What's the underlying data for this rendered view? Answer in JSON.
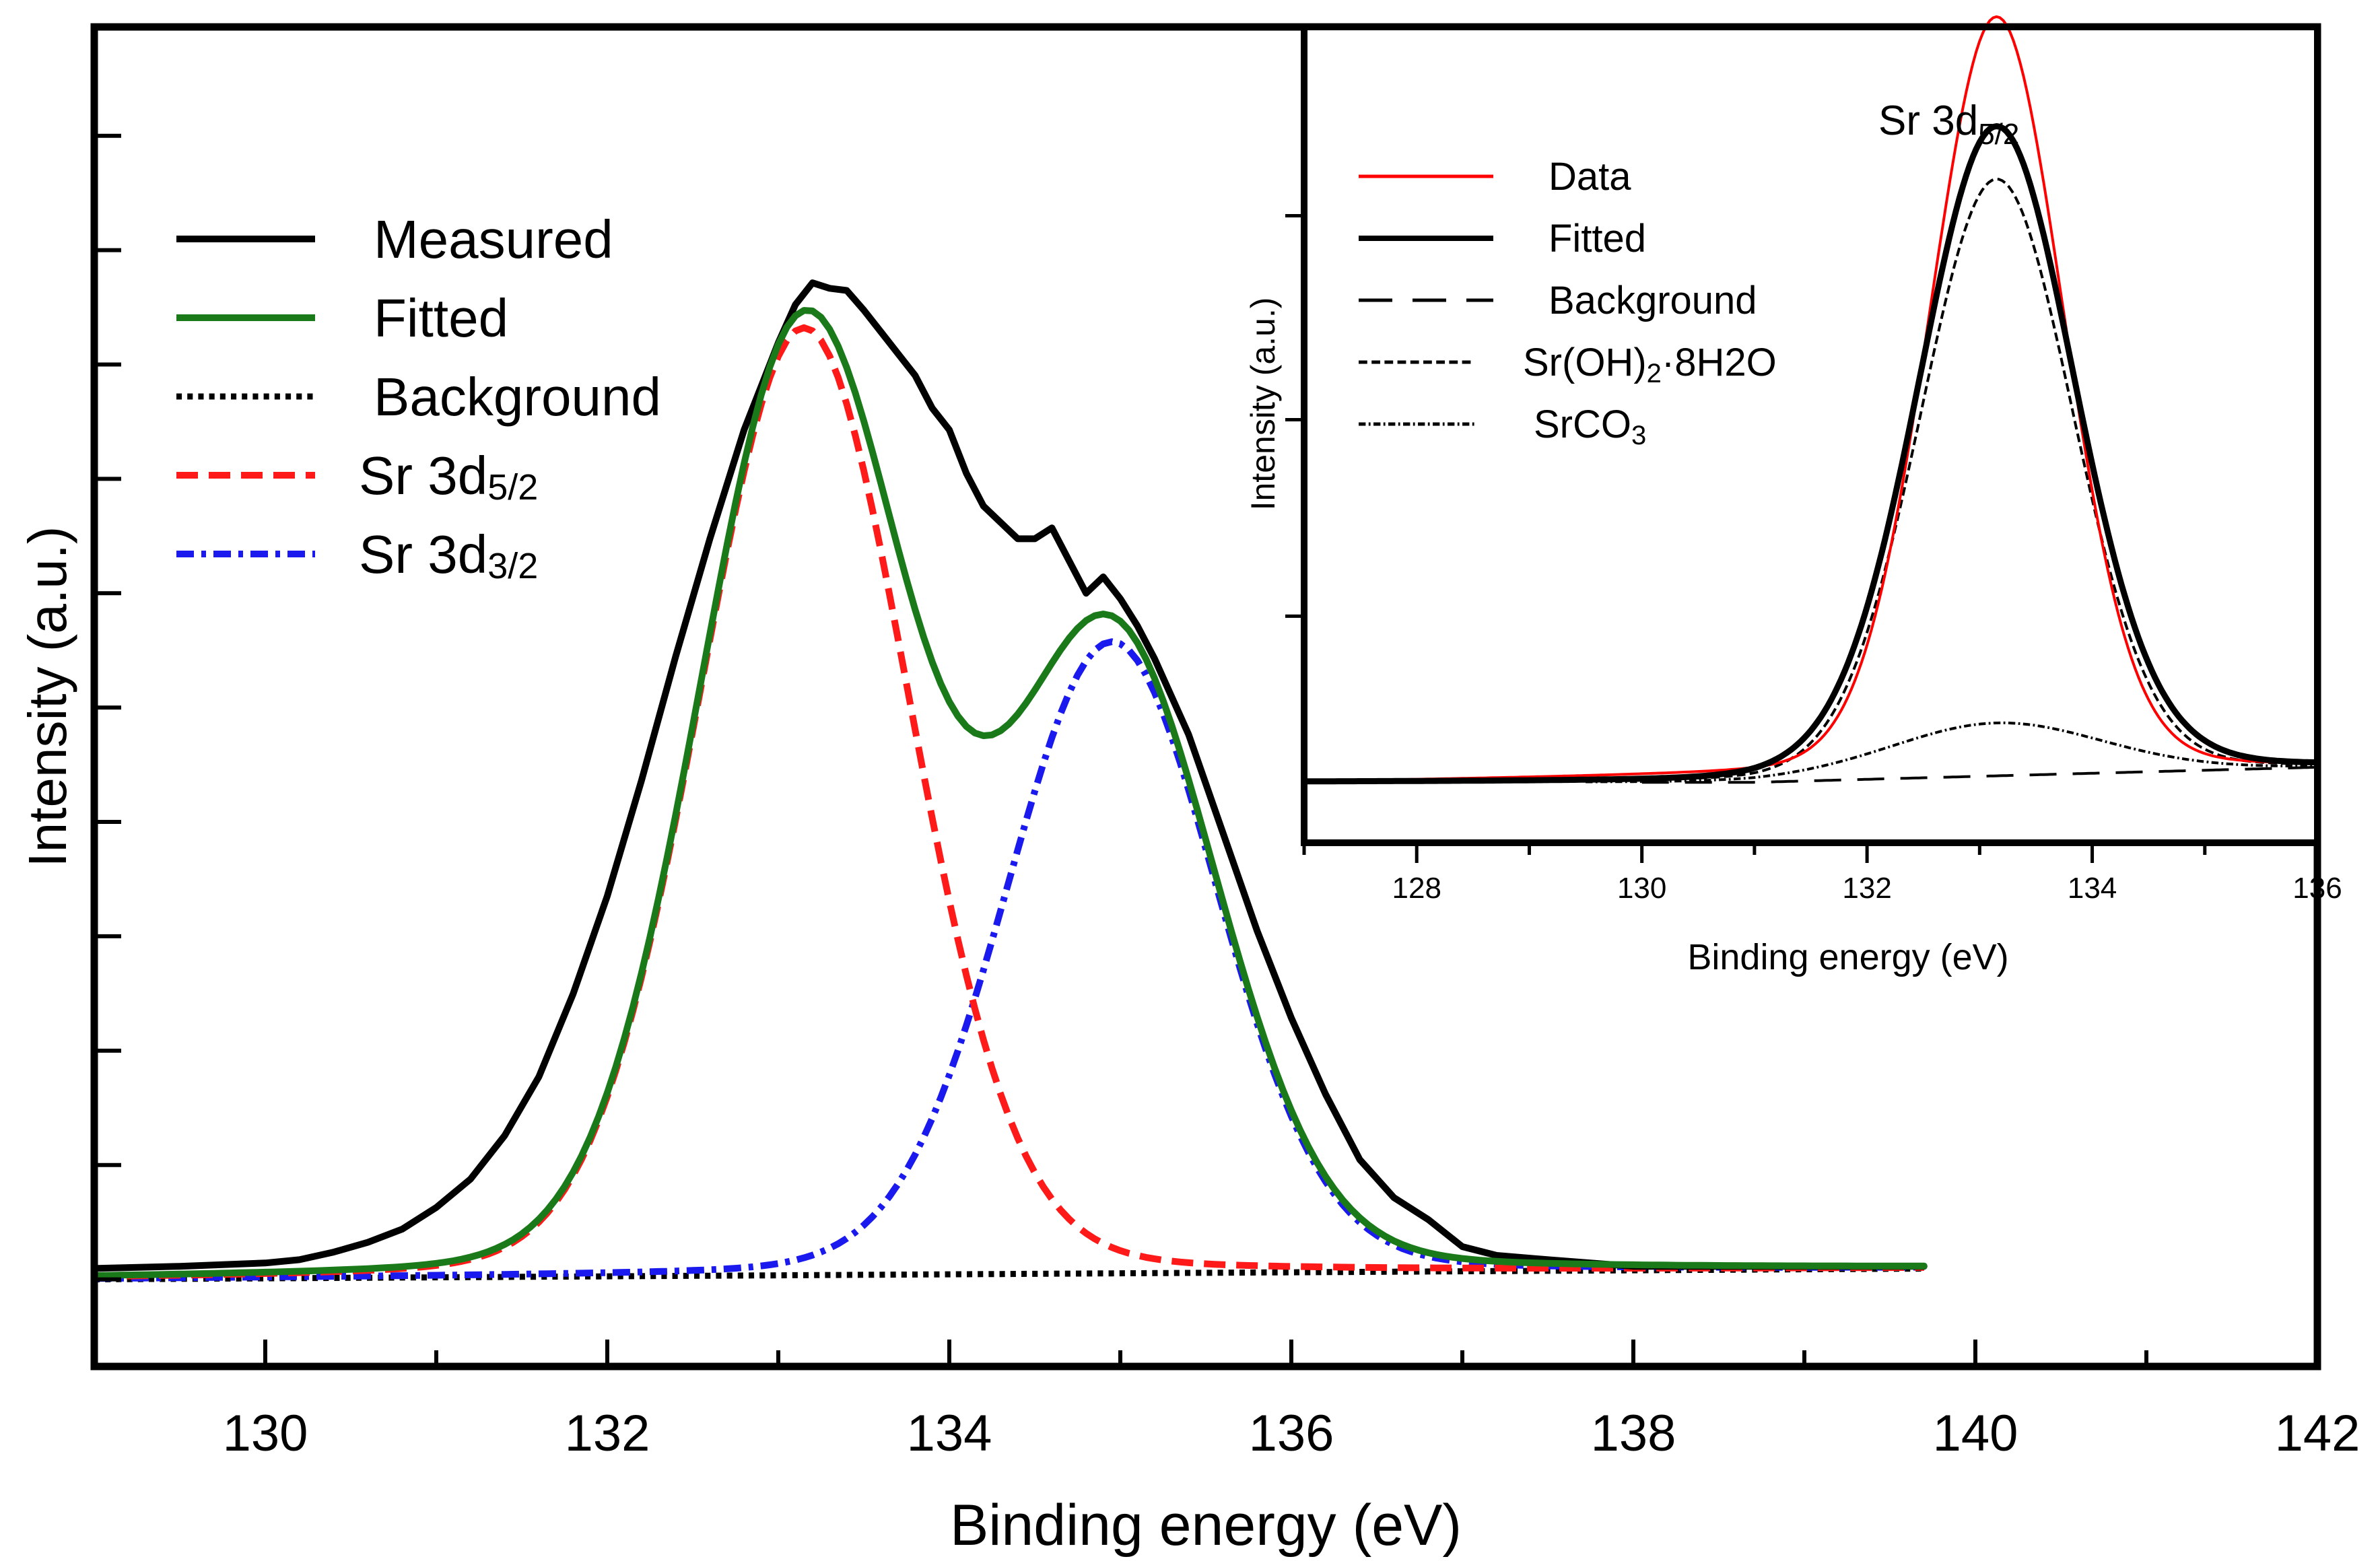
{
  "chart_data": [
    {
      "type": "line",
      "id": "main",
      "xlabel": "Binding energy (eV)",
      "ylabel": "Intensity (a.u.)",
      "xlim": [
        129.0,
        142.0
      ],
      "ylim": [
        -0.08,
        1.15
      ],
      "x_ticks": [
        130,
        132,
        134,
        136,
        138,
        140,
        142
      ],
      "x_tick_labels": [
        "130",
        "132",
        "134",
        "136",
        "138",
        "140",
        "142"
      ],
      "y_tick_values": [
        0.0,
        0.105,
        0.21,
        0.315,
        0.42,
        0.525,
        0.63,
        0.735,
        0.84,
        0.945,
        1.05
      ],
      "y_tick_labels_shown": false,
      "grid": false,
      "legend_position": "upper-left",
      "series": [
        {
          "name": "Measured",
          "label_main": "Measured",
          "label_sub": "",
          "style": "solid",
          "color": "#000000",
          "width": 10,
          "x": [
            129.0,
            129.5,
            130.0,
            130.2,
            130.4,
            130.6,
            130.8,
            131.0,
            131.2,
            131.4,
            131.6,
            131.8,
            132.0,
            132.2,
            132.4,
            132.6,
            132.8,
            133.0,
            133.1,
            133.2,
            133.3,
            133.4,
            133.5,
            133.6,
            133.7,
            133.8,
            133.9,
            134.0,
            134.1,
            134.2,
            134.3,
            134.4,
            134.5,
            134.6,
            134.7,
            134.8,
            134.9,
            135.0,
            135.1,
            135.2,
            135.4,
            135.6,
            135.8,
            136.0,
            136.2,
            136.4,
            136.6,
            136.8,
            137.0,
            137.2,
            137.5,
            138.0,
            138.5,
            139.0,
            139.5,
            139.7
          ],
          "y": [
            0.01,
            0.012,
            0.015,
            0.018,
            0.025,
            0.034,
            0.046,
            0.066,
            0.092,
            0.132,
            0.186,
            0.262,
            0.352,
            0.458,
            0.572,
            0.68,
            0.78,
            0.86,
            0.895,
            0.915,
            0.91,
            0.908,
            0.89,
            0.87,
            0.85,
            0.83,
            0.8,
            0.78,
            0.74,
            0.71,
            0.695,
            0.68,
            0.68,
            0.69,
            0.66,
            0.63,
            0.645,
            0.625,
            0.6,
            0.57,
            0.5,
            0.41,
            0.32,
            0.24,
            0.17,
            0.11,
            0.075,
            0.055,
            0.03,
            0.022,
            0.018,
            0.012,
            0.012,
            0.012,
            0.012,
            0.012
          ]
        },
        {
          "name": "Fitted",
          "label_main": "Fitted",
          "label_sub": "",
          "style": "solid",
          "color": "#1a7a1a",
          "width": 10,
          "components": [
            "Background",
            "Sr 3d5/2",
            "Sr 3d3/2"
          ]
        },
        {
          "name": "Background",
          "label_main": "Background",
          "label_sub": "",
          "style": "dotted",
          "color": "#000000",
          "width": 9,
          "model": {
            "type": "linear",
            "y_at_xmin": 0.0,
            "y_at_xmax": 0.012
          }
        },
        {
          "name": "Sr 3d5/2",
          "label_main": "Sr 3d",
          "label_sub": "5/2",
          "style": "dashed",
          "color": "#ff1a1a",
          "width": 10,
          "model": {
            "type": "voigt",
            "center": 133.15,
            "height": 0.87,
            "sigma": 0.62,
            "lorentz_fraction": 0.1
          }
        },
        {
          "name": "Sr 3d3/2",
          "label_main": "Sr 3d",
          "label_sub": "3/2",
          "style": "dashdot",
          "color": "#1a1aee",
          "width": 10,
          "model": {
            "type": "voigt",
            "center": 134.95,
            "height": 0.58,
            "sigma": 0.62,
            "lorentz_fraction": 0.1
          }
        }
      ]
    },
    {
      "type": "line",
      "id": "inset",
      "title_main": "Sr 3d",
      "title_sub": "5/2",
      "xlabel": "Binding energy (eV)",
      "ylabel": "Intensity (a.u.)",
      "xlim": [
        127.0,
        136.0
      ],
      "ylim": [
        -0.08,
        1.0
      ],
      "x_ticks": [
        128,
        130,
        132,
        134,
        136
      ],
      "x_tick_labels": [
        "128",
        "130",
        "132",
        "134",
        "136"
      ],
      "y_tick_values": [
        0.22,
        0.48,
        0.75,
        1.0
      ],
      "y_tick_labels_shown": false,
      "grid": false,
      "legend_position": "upper-left",
      "series": [
        {
          "name": "Data",
          "label_main": "Data",
          "label_sub": "",
          "label_after": "",
          "style": "solid",
          "color": "#ff0000",
          "width": 4,
          "model": {
            "type": "voigt",
            "center": 133.15,
            "height": 1.0,
            "sigma": 0.6,
            "lorentz_fraction": 0.1,
            "baseline": 0.0,
            "baseline_slope": 0.0022
          }
        },
        {
          "name": "Fitted",
          "label_main": "Fitted",
          "label_sub": "",
          "label_after": "",
          "style": "solid",
          "color": "#000000",
          "width": 9,
          "components": [
            "Background",
            "Sr(OH)2·8H2O",
            "SrCO3"
          ]
        },
        {
          "name": "Background",
          "label_main": "Background",
          "label_sub": "",
          "label_after": "",
          "style": "longdash",
          "color": "#000000",
          "width": 4,
          "model": {
            "type": "linear",
            "y_at_x0": 0.0,
            "x0": 131.0,
            "slope": 0.004
          }
        },
        {
          "name": "Sr(OH)2·8H2O",
          "label_main": "Sr(OH)",
          "label_sub": "2",
          "label_after": "·8H2O",
          "style": "dashed",
          "color": "#000000",
          "width": 4,
          "model": {
            "type": "voigt",
            "center": 133.15,
            "height": 0.79,
            "sigma": 0.68,
            "lorentz_fraction": 0.08
          }
        },
        {
          "name": "SrCO3",
          "label_main": "SrCO",
          "label_sub": "3",
          "label_after": "",
          "style": "dashdot",
          "color": "#000000",
          "width": 4,
          "model": {
            "type": "voigt",
            "center": 133.15,
            "height": 0.07,
            "sigma": 0.95,
            "lorentz_fraction": 0.1
          }
        }
      ]
    }
  ]
}
